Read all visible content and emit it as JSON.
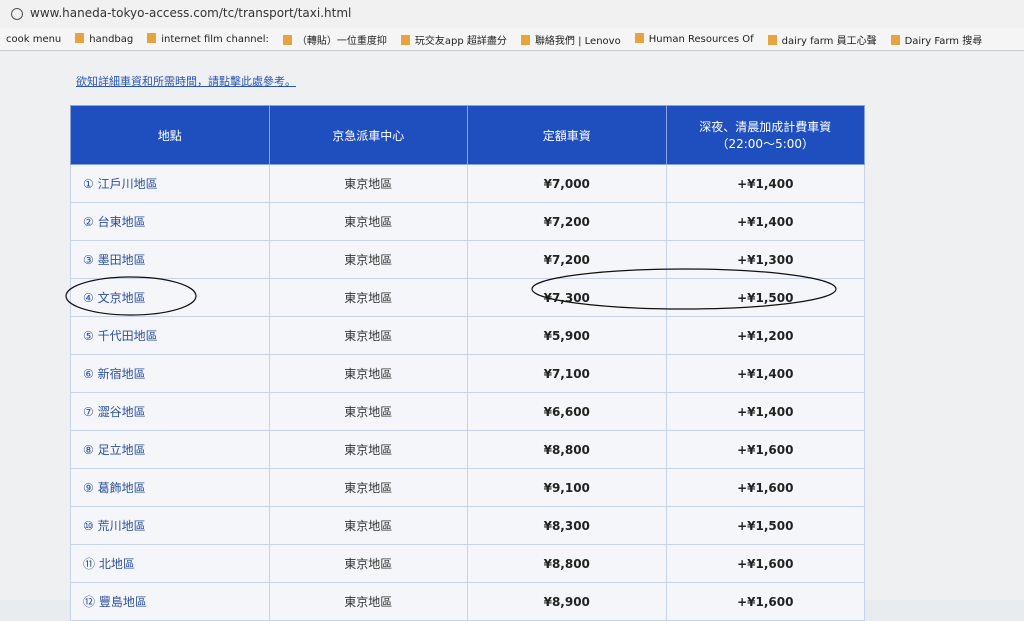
{
  "browser": {
    "url": "www.haneda-tokyo-access.com/tc/transport/taxi.html",
    "bookmarks": [
      "cook menu",
      "handbag",
      "internet film channel:",
      "（轉貼）一位重度抑",
      "玩交友app 超詳盡分",
      "聯絡我們 | Lenovo",
      "Human Resources Of",
      "dairy farm 員工心聲",
      "Dairy Farm 搜尋"
    ]
  },
  "page": {
    "link": "欲知詳細車資和所需時間，請點擊此處參考。",
    "table": {
      "header": [
        "地點",
        "京急派車中心",
        "定額車資",
        "深夜、清晨加成計費車資"
      ],
      "header_note": "（22:00～5:00）",
      "rows": [
        [
          "① 江戶川地區",
          "東京地區",
          "¥7,000",
          "+¥1,400"
        ],
        [
          "② 台東地區",
          "東京地區",
          "¥7,200",
          "+¥1,400"
        ],
        [
          "③ 墨田地區",
          "東京地區",
          "¥7,200",
          "+¥1,300"
        ],
        [
          "④ 文京地區",
          "東京地區",
          "¥7,300",
          "+¥1,500"
        ],
        [
          "⑤ 千代田地區",
          "東京地區",
          "¥5,900",
          "+¥1,200"
        ],
        [
          "⑥ 新宿地區",
          "東京地區",
          "¥7,100",
          "+¥1,400"
        ],
        [
          "⑦ 澀谷地區",
          "東京地區",
          "¥6,600",
          "+¥1,400"
        ],
        [
          "⑧ 足立地區",
          "東京地區",
          "¥8,800",
          "+¥1,600"
        ],
        [
          "⑨ 葛飾地區",
          "東京地區",
          "¥9,100",
          "+¥1,600"
        ],
        [
          "⑩ 荒川地區",
          "東京地區",
          "¥8,300",
          "+¥1,500"
        ],
        [
          "⑪ 北地區",
          "東京地區",
          "¥8,800",
          "+¥1,600"
        ],
        [
          "⑫ 豐島地區",
          "東京地區",
          "¥8,900",
          "+¥1,600"
        ]
      ]
    }
  }
}
